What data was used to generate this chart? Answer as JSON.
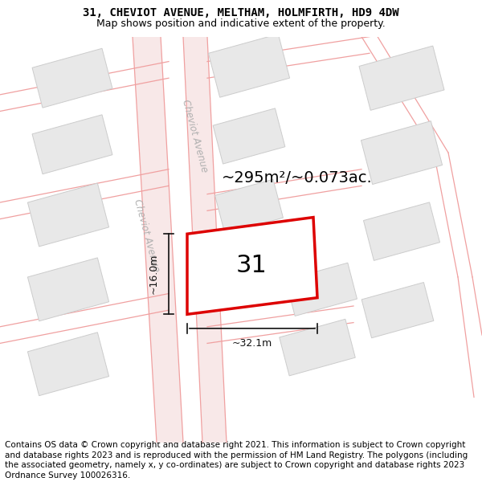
{
  "title_line1": "31, CHEVIOT AVENUE, MELTHAM, HOLMFIRTH, HD9 4DW",
  "title_line2": "Map shows position and indicative extent of the property.",
  "footer_text": "Contains OS data © Crown copyright and database right 2021. This information is subject to Crown copyright and database rights 2023 and is reproduced with the permission of HM Land Registry. The polygons (including the associated geometry, namely x, y co-ordinates) are subject to Crown copyright and database rights 2023 Ordnance Survey 100026316.",
  "area_label": "~295m²/~0.073ac.",
  "number_label": "31",
  "width_label": "~32.1m",
  "height_label": "~16.0m",
  "map_bg": "#f5f5f5",
  "building_fill": "#e8e8e8",
  "building_edge": "#cccccc",
  "road_line_color": "#f0a0a0",
  "highlight_fill": "#ffffff",
  "highlight_edge": "#dd0000",
  "street_color": "#b0b0b0",
  "dim_color": "#111111",
  "title_fontsize": 10,
  "subtitle_fontsize": 9,
  "footer_fontsize": 7.5,
  "area_fontsize": 14,
  "number_fontsize": 22,
  "dim_fontsize": 9,
  "street_fontsize": 8.5,
  "title_font": "DejaVu Sans Mono",
  "road_lw": 0.9
}
